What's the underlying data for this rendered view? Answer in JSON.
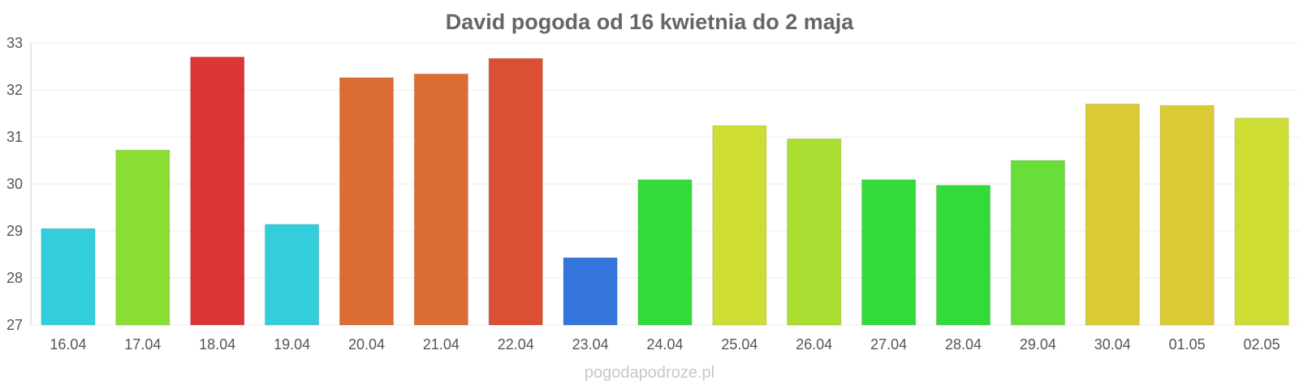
{
  "chart_data": {
    "type": "bar",
    "title": "David pogoda od 16 kwietnia do 2 maja",
    "xlabel": "",
    "ylabel": "",
    "ylim": [
      27,
      33
    ],
    "yticks": [
      27,
      28,
      29,
      30,
      31,
      32,
      33
    ],
    "grid": true,
    "legend": "none",
    "categories": [
      "16.04",
      "17.04",
      "18.04",
      "19.04",
      "20.04",
      "21.04",
      "22.04",
      "23.04",
      "24.04",
      "25.04",
      "26.04",
      "27.04",
      "28.04",
      "29.04",
      "30.04",
      "01.05",
      "02.05"
    ],
    "values": [
      29.05,
      30.72,
      32.7,
      29.14,
      32.26,
      32.34,
      32.67,
      28.43,
      30.09,
      31.24,
      30.96,
      30.09,
      29.97,
      30.5,
      31.7,
      31.67,
      31.4
    ],
    "colors": [
      "#33cedb",
      "#8ade33",
      "#db3535",
      "#33cedb",
      "#db6d33",
      "#db6d33",
      "#db5033",
      "#3375db",
      "#33db3a",
      "#cedd33",
      "#abdd33",
      "#33db3a",
      "#33db3a",
      "#69dd3a",
      "#dbca33",
      "#dbca33",
      "#cedd33"
    ]
  },
  "watermark": "pogodapodroze.pl"
}
